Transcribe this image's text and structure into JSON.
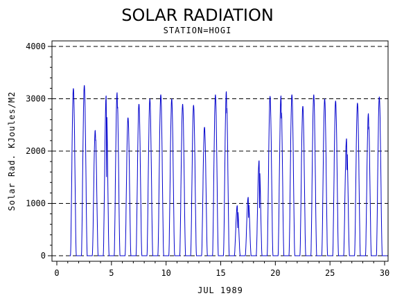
{
  "chart_data": {
    "type": "line",
    "title": "SOLAR RADIATION",
    "subtitle": "STATION=HOGI",
    "xlabel": "JUL 1989",
    "ylabel": "Solar Rad. KJoules/M2",
    "xlim": [
      0,
      30
    ],
    "ylim": [
      0,
      4000
    ],
    "xticks": [
      0,
      5,
      10,
      15,
      20,
      25,
      30
    ],
    "yticks": [
      0,
      1000,
      2000,
      3000,
      4000
    ],
    "grid": "horizontal dashed",
    "series": [
      {
        "color": "#0000cc",
        "daily_peaks": [
          {
            "day": 1,
            "peak": 3200,
            "dip": null
          },
          {
            "day": 2,
            "peak": 3260,
            "dip": null
          },
          {
            "day": 3,
            "peak": 2400,
            "dip": 2200
          },
          {
            "day": 4,
            "peak": 3060,
            "dip": 1400
          },
          {
            "day": 5,
            "peak": 3120,
            "dip": 2800
          },
          {
            "day": 6,
            "peak": 2640,
            "dip": null
          },
          {
            "day": 7,
            "peak": 2900,
            "dip": null
          },
          {
            "day": 8,
            "peak": 3000,
            "dip": null
          },
          {
            "day": 9,
            "peak": 3080,
            "dip": null
          },
          {
            "day": 10,
            "peak": 3000,
            "dip": null
          },
          {
            "day": 11,
            "peak": 2900,
            "dip": null
          },
          {
            "day": 12,
            "peak": 2880,
            "dip": null
          },
          {
            "day": 13,
            "peak": 2460,
            "dip": null
          },
          {
            "day": 14,
            "peak": 3080,
            "dip": null
          },
          {
            "day": 15,
            "peak": 3140,
            "dip": 2700
          },
          {
            "day": 16,
            "peak": 960,
            "dip": 500
          },
          {
            "day": 17,
            "peak": 1120,
            "dip": 700
          },
          {
            "day": 18,
            "peak": 1820,
            "dip": 850
          },
          {
            "day": 19,
            "peak": 3050,
            "dip": null
          },
          {
            "day": 20,
            "peak": 3060,
            "dip": 2600
          },
          {
            "day": 21,
            "peak": 3080,
            "dip": null
          },
          {
            "day": 22,
            "peak": 2860,
            "dip": null
          },
          {
            "day": 23,
            "peak": 3080,
            "dip": null
          },
          {
            "day": 24,
            "peak": 3000,
            "dip": null
          },
          {
            "day": 25,
            "peak": 2960,
            "dip": null
          },
          {
            "day": 26,
            "peak": 2240,
            "dip": 1600
          },
          {
            "day": 27,
            "peak": 2920,
            "dip": null
          },
          {
            "day": 28,
            "peak": 2720,
            "dip": 2400
          },
          {
            "day": 29,
            "peak": 3040,
            "dip": null
          }
        ]
      }
    ]
  }
}
